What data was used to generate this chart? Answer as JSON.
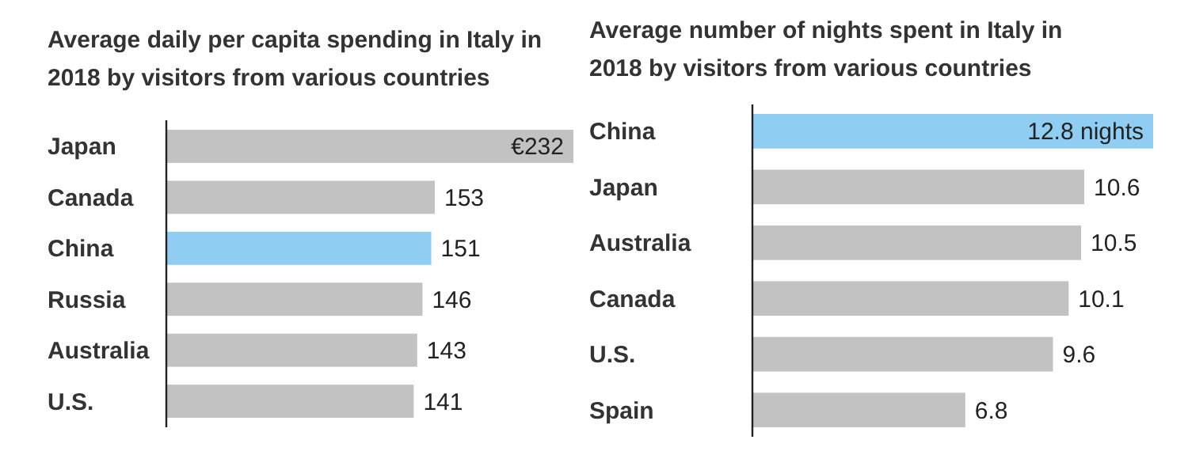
{
  "chart_data": [
    {
      "type": "bar",
      "orientation": "horizontal",
      "title": "Average daily per capita spending in Italy in 2018 by visitors from various countries",
      "categories": [
        "Japan",
        "Canada",
        "China",
        "Russia",
        "Australia",
        "U.S."
      ],
      "values": [
        232,
        153,
        151,
        146,
        143,
        141
      ],
      "colors": [
        "#c2c2c2",
        "#c2c2c2",
        "#8fcdf2",
        "#c2c2c2",
        "#c2c2c2",
        "#c2c2c2"
      ],
      "value_labels": [
        "€232",
        "153",
        "151",
        "146",
        "143",
        "141"
      ]
    },
    {
      "type": "bar",
      "orientation": "horizontal",
      "title": "Average number of nights spent in Italy in 2018 by visitors from various countries",
      "categories": [
        "China",
        "Japan",
        "Australia",
        "Canada",
        "U.S.",
        "Spain"
      ],
      "values": [
        12.8,
        10.6,
        10.5,
        10.1,
        9.6,
        6.8
      ],
      "colors": [
        "#8fcdf2",
        "#c2c2c2",
        "#c2c2c2",
        "#c2c2c2",
        "#c2c2c2",
        "#c2c2c2"
      ],
      "value_labels": [
        "12.8 nights",
        "10.6",
        "10.5",
        "10.1",
        "9.6",
        "6.8"
      ]
    }
  ]
}
